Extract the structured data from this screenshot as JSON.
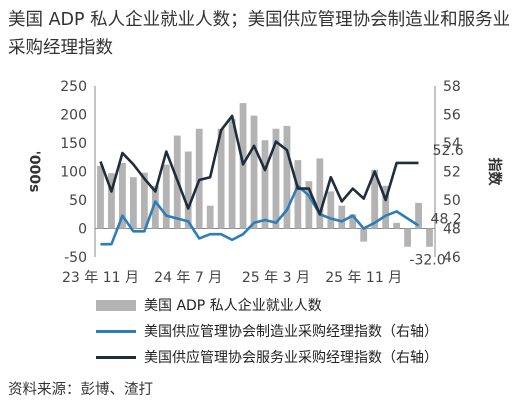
{
  "title": "美国 ADP 私人企业就业人数；美国供应管理协会制造业和服务业采购经理指数",
  "source": "资料来源：彭博、渣打",
  "chart_data": {
    "type": "bar+line",
    "x_labels": [
      "23 年 11 月",
      "24 年 7 月",
      "25 年 3 月",
      "25 年 11 月"
    ],
    "left_axis": {
      "label": "'000s",
      "ylim": [
        -50,
        250
      ],
      "ticks": [
        -50,
        0,
        50,
        100,
        150,
        200,
        250
      ]
    },
    "right_axis": {
      "label": "指数",
      "ylim": [
        46,
        58
      ],
      "ticks": [
        46,
        48,
        50,
        52,
        54,
        56,
        58
      ]
    },
    "series": [
      {
        "name": "美国 ADP 私人企业就业人数",
        "axis": "left",
        "type": "bar",
        "color": "#b3b3b3",
        "values": [
          110,
          97,
          115,
          90,
          98,
          75,
          112,
          163,
          135,
          175,
          40,
          175,
          192,
          220,
          198,
          155,
          175,
          180,
          120,
          83,
          123,
          65,
          40,
          25,
          -23,
          103,
          75,
          10,
          -32,
          45,
          -32
        ]
      },
      {
        "name": "美国供应管理协会制造业采购经理指数（右轴）",
        "axis": "right",
        "type": "line",
        "color": "#2e7db8",
        "values": [
          46.9,
          46.9,
          48.9,
          47.8,
          47.8,
          49.9,
          48.9,
          48.7,
          48.5,
          47.3,
          47.6,
          47.6,
          47.2,
          47.6,
          48.4,
          48.6,
          48.4,
          49.3,
          51.0,
          50.3,
          49.0,
          48.7,
          48.5,
          48.9,
          48.0,
          48.4,
          48.9,
          49.2,
          48.7,
          48.2
        ]
      },
      {
        "name": "美国供应管理协会服务业采购经理指数（右轴）",
        "axis": "right",
        "type": "line",
        "color": "#1f2d3d",
        "values": [
          52.7,
          50.6,
          53.3,
          52.5,
          51.5,
          50.6,
          53.4,
          51.4,
          49.4,
          51.4,
          51.6,
          54.9,
          55.9,
          52.5,
          53.8,
          52.1,
          54.1,
          53.5,
          50.8,
          50.8,
          49.0,
          51.6,
          49.9,
          50.8,
          50.1,
          52.0,
          50.0,
          52.6,
          52.6,
          52.6
        ]
      }
    ],
    "annotations": [
      {
        "text": "52.6",
        "series": 2,
        "color": "#1f2d3d"
      },
      {
        "text": "48.2",
        "series": 1,
        "color": "#2e7db8"
      },
      {
        "text": "-32.0",
        "series": 0,
        "color": "#222"
      }
    ]
  },
  "legend": [
    {
      "label": "美国 ADP 私人企业就业人数",
      "kind": "bar",
      "color": "#b3b3b3"
    },
    {
      "label": "美国供应管理协会制造业采购经理指数（右轴）",
      "kind": "line",
      "color": "#2e7db8"
    },
    {
      "label": "美国供应管理协会服务业采购经理指数（右轴）",
      "kind": "line",
      "color": "#1f2d3d"
    }
  ]
}
